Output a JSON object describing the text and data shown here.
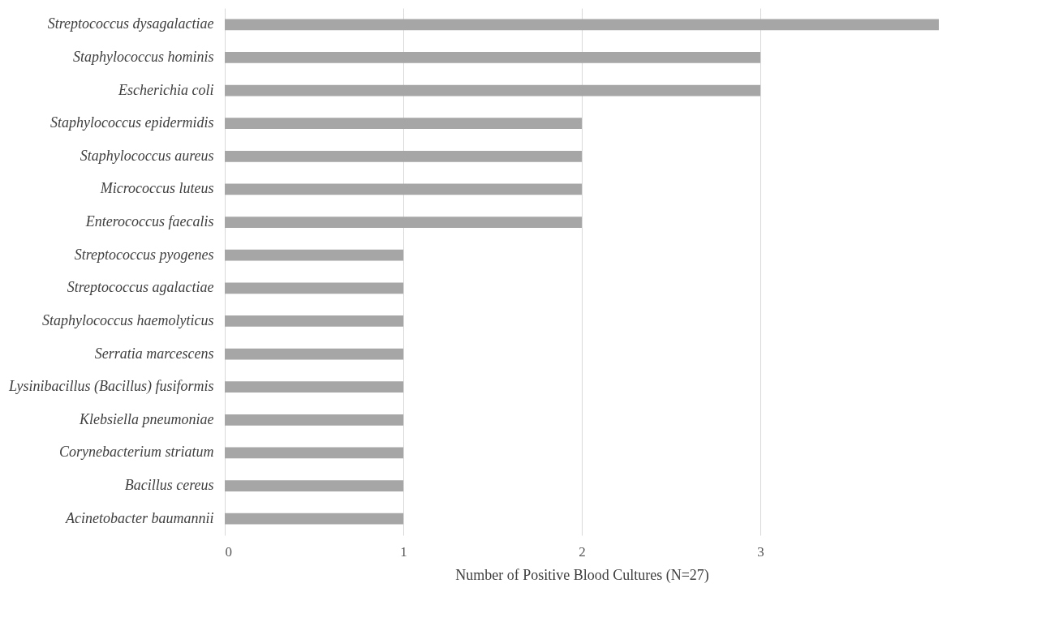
{
  "chart_data": {
    "type": "bar",
    "orientation": "horizontal",
    "xlabel": "Number of Positive Blood Cultures (N=27)",
    "categories": [
      "Streptococcus dysagalactiae",
      "Staphylococcus hominis",
      "Escherichia coli",
      "Staphylococcus epidermidis",
      "Staphylococcus aureus",
      "Micrococcus luteus",
      "Enterococcus faecalis",
      "Streptococcus pyogenes",
      "Streptococcus agalactiae",
      "Staphylococcus haemolyticus",
      "Serratia marcescens",
      "Lysinibacillus (Bacillus) fusiformis",
      "Klebsiella pneumoniae",
      "Corynebacterium striatum",
      "Bacillus cereus",
      "Acinetobacter baumannii"
    ],
    "values": [
      4,
      3,
      3,
      2,
      2,
      2,
      2,
      1,
      1,
      1,
      1,
      1,
      1,
      1,
      1,
      1
    ],
    "color": "#a6a6a6",
    "xlim": [
      0,
      4
    ],
    "xticks": [
      0,
      1,
      2,
      3
    ],
    "grid": "x"
  }
}
